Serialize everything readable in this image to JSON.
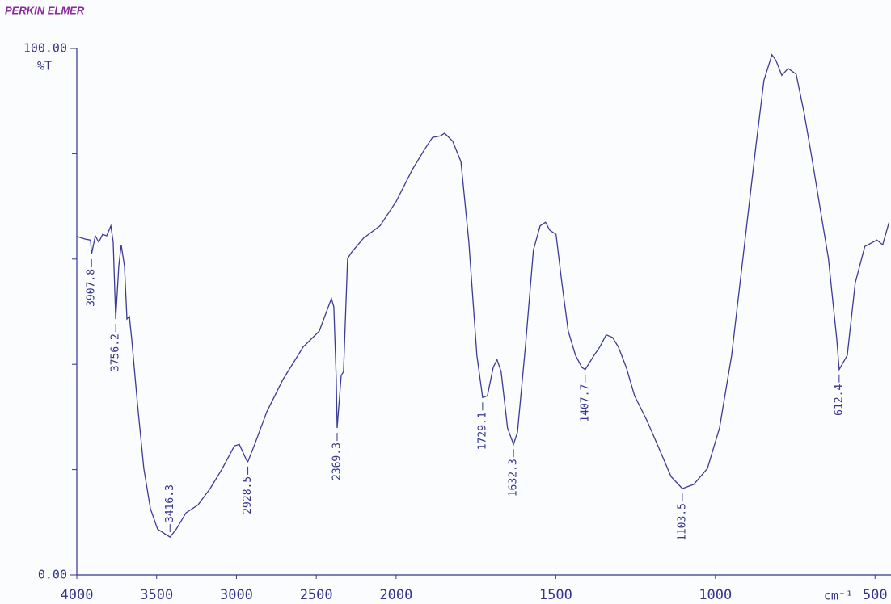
{
  "brand": "PERKIN ELMER",
  "chart_data": {
    "type": "line",
    "color": "#3b3b95",
    "y_label": "%T",
    "x_label": "cm⁻¹",
    "xlim": [
      4000,
      450
    ],
    "x_scale_break": 2000,
    "x_scale_factor": 2,
    "xticks": [
      4000,
      3500,
      3000,
      2500,
      2000,
      1500,
      1000,
      500
    ],
    "ylim": [
      0,
      100
    ],
    "yticks": [
      {
        "value": 0,
        "label": "0.00"
      },
      {
        "value": 100,
        "label": "100.00"
      }
    ],
    "yminor_ticks": [
      20,
      40,
      60,
      80
    ],
    "x": [
      4000,
      3949,
      3914,
      3907.8,
      3884,
      3863,
      3838,
      3813,
      3787,
      3772,
      3756.2,
      3737,
      3722,
      3701,
      3686,
      3671,
      3656,
      3620,
      3580,
      3539,
      3494,
      3443,
      3416.3,
      3377,
      3316,
      3241,
      3165,
      3089,
      3013,
      2982,
      2937,
      2928.5,
      2886,
      2810,
      2709,
      2582,
      2481,
      2405,
      2390,
      2375,
      2369.3,
      2344,
      2329,
      2304,
      2278,
      2203,
      2101,
      2000,
      1949,
      1911,
      1886,
      1861,
      1848,
      1823,
      1797,
      1772,
      1747,
      1729.1,
      1714,
      1696,
      1684,
      1671,
      1651,
      1632.3,
      1620,
      1595,
      1570,
      1549,
      1532,
      1519,
      1499,
      1481,
      1461,
      1438,
      1418,
      1407.7,
      1380,
      1362,
      1342,
      1322,
      1304,
      1279,
      1253,
      1215,
      1177,
      1139,
      1103.5,
      1068,
      1025,
      987,
      949,
      911,
      873,
      848,
      823,
      810,
      792,
      772,
      747,
      722,
      696,
      671,
      646,
      620,
      612.4,
      587,
      562,
      532,
      494,
      476,
      456
    ],
    "series": [
      {
        "values": [
          64.3,
          63.8,
          63.6,
          60.9,
          64.4,
          63.2,
          64.7,
          64.4,
          66.3,
          63.2,
          48.6,
          58.6,
          62.7,
          58.6,
          48.6,
          49.1,
          44.8,
          32.5,
          20.2,
          12.6,
          8.7,
          7.7,
          7.2,
          8.7,
          11.8,
          13.3,
          16.4,
          20.2,
          24.5,
          24.8,
          21.8,
          21.5,
          24.8,
          31.0,
          37.1,
          43.3,
          46.3,
          52.5,
          50.9,
          37.1,
          27.9,
          37.9,
          38.6,
          60.1,
          61.3,
          64.0,
          66.3,
          70.9,
          77.0,
          80.8,
          83.1,
          83.4,
          83.9,
          82.4,
          78.5,
          63.2,
          41.7,
          33.7,
          34.0,
          39.4,
          40.9,
          38.6,
          27.9,
          24.8,
          27.1,
          43.3,
          61.7,
          66.3,
          67.0,
          65.5,
          64.7,
          55.5,
          46.3,
          41.7,
          39.4,
          39.0,
          41.7,
          43.3,
          45.6,
          45.1,
          43.3,
          39.4,
          34.0,
          29.4,
          24.1,
          18.7,
          16.4,
          17.2,
          20.2,
          27.9,
          41.7,
          61.7,
          81.6,
          93.9,
          98.8,
          97.7,
          94.9,
          96.2,
          95.1,
          87.7,
          78.5,
          69.3,
          60.1,
          44.8,
          39.0,
          41.7,
          55.5,
          62.4,
          63.6,
          62.7,
          67.0
        ]
      }
    ],
    "peaks": [
      {
        "x": 3907.8,
        "y": 60.9
      },
      {
        "x": 3756.2,
        "y": 48.6
      },
      {
        "x": 3416.3,
        "y": 7.2
      },
      {
        "x": 2928.5,
        "y": 21.5
      },
      {
        "x": 2369.3,
        "y": 27.9
      },
      {
        "x": 1729.1,
        "y": 33.7
      },
      {
        "x": 1632.3,
        "y": 24.8
      },
      {
        "x": 1407.7,
        "y": 39.0
      },
      {
        "x": 1103.5,
        "y": 16.4
      },
      {
        "x": 612.4,
        "y": 39.0
      }
    ]
  }
}
